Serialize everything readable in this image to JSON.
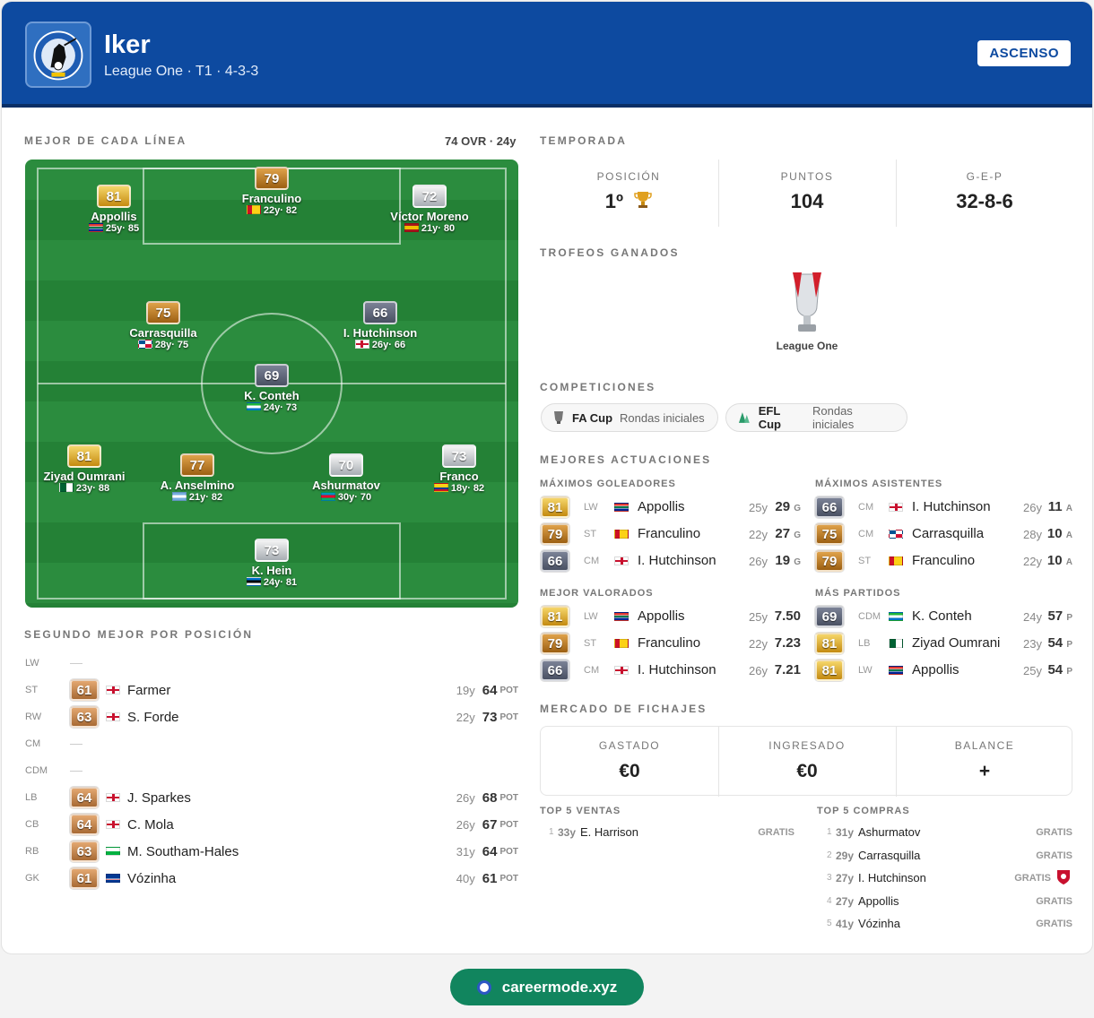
{
  "header": {
    "club_name": "Iker",
    "subtitle": "League One · T1 · 4-3-3",
    "badge": "ASCENSO"
  },
  "best_line": {
    "title": "MEJOR DE CADA LÍNEA",
    "summary": "74 OVR · 24y",
    "players": [
      {
        "rating": "81",
        "name": "Appollis",
        "meta": "25y· 85",
        "tier": "gold",
        "flag": "rsa"
      },
      {
        "rating": "79",
        "name": "Franculino",
        "meta": "22y· 82",
        "tier": "bronze",
        "flag": "gnb"
      },
      {
        "rating": "72",
        "name": "Víctor Moreno",
        "meta": "21y· 80",
        "tier": "silver",
        "flag": "esp"
      },
      {
        "rating": "75",
        "name": "Carrasquilla",
        "meta": "28y· 75",
        "tier": "bronze",
        "flag": "pan"
      },
      {
        "rating": "66",
        "name": "I. Hutchinson",
        "meta": "26y· 66",
        "tier": "dark",
        "flag": "gbr"
      },
      {
        "rating": "69",
        "name": "K. Conteh",
        "meta": "24y· 73",
        "tier": "dark",
        "flag": "sle"
      },
      {
        "rating": "81",
        "name": "Ziyad Oumrani",
        "meta": "23y· 88",
        "tier": "gold",
        "flag": "alg"
      },
      {
        "rating": "77",
        "name": "A. Anselmino",
        "meta": "21y· 82",
        "tier": "bronze",
        "flag": "arg"
      },
      {
        "rating": "70",
        "name": "Ashurmatov",
        "meta": "30y· 70",
        "tier": "silver",
        "flag": "aze"
      },
      {
        "rating": "73",
        "name": "Franco",
        "meta": "18y· 82",
        "tier": "silver",
        "flag": "col"
      },
      {
        "rating": "73",
        "name": "K. Hein",
        "meta": "24y· 81",
        "tier": "silver",
        "flag": "est"
      }
    ]
  },
  "second_best": {
    "title": "SEGUNDO MEJOR POR POSICIÓN",
    "rows": [
      {
        "pos": "LW",
        "empty": true
      },
      {
        "pos": "ST",
        "rating": "61",
        "name": "Farmer",
        "age": "19y",
        "pot": "64",
        "flag": "gbr"
      },
      {
        "pos": "RW",
        "rating": "63",
        "name": "S. Forde",
        "age": "22y",
        "pot": "73",
        "flag": "gbr"
      },
      {
        "pos": "CM",
        "empty": true
      },
      {
        "pos": "CDM",
        "empty": true
      },
      {
        "pos": "LB",
        "rating": "64",
        "name": "J. Sparkes",
        "age": "26y",
        "pot": "68",
        "flag": "gbr"
      },
      {
        "pos": "CB",
        "rating": "64",
        "name": "C. Mola",
        "age": "26y",
        "pot": "67",
        "flag": "gbr"
      },
      {
        "pos": "RB",
        "rating": "63",
        "name": "M. Southam-Hales",
        "age": "31y",
        "pot": "64",
        "flag": "wal"
      },
      {
        "pos": "GK",
        "rating": "61",
        "name": "Vózinha",
        "age": "40y",
        "pot": "61",
        "flag": "cpv"
      }
    ],
    "pot_label": "POT"
  },
  "season": {
    "title": "TEMPORADA",
    "position_label": "POSICIÓN",
    "position_value": "1º",
    "points_label": "PUNTOS",
    "points_value": "104",
    "record_label": "G-E-P",
    "record_value": "32-8-6"
  },
  "trophies": {
    "title": "TROFEOS GANADOS",
    "items": [
      "League One"
    ]
  },
  "competitions": {
    "title": "COMPETICIONES",
    "items": [
      {
        "name": "FA Cup",
        "status": "Rondas iniciales"
      },
      {
        "name": "EFL Cup",
        "status": "Rondas iniciales"
      }
    ]
  },
  "performances": {
    "title": "MEJORES ACTUACIONES",
    "scorers": {
      "title": "MÁXIMOS GOLEADORES",
      "unit": "G",
      "rows": [
        {
          "rating": "81",
          "tier": "gold",
          "pos": "LW",
          "flag": "rsa",
          "name": "Appollis",
          "age": "25y",
          "val": "29"
        },
        {
          "rating": "79",
          "tier": "bronze",
          "pos": "ST",
          "flag": "gnb",
          "name": "Franculino",
          "age": "22y",
          "val": "27"
        },
        {
          "rating": "66",
          "tier": "dark",
          "pos": "CM",
          "flag": "gbr",
          "name": "I. Hutchinson",
          "age": "26y",
          "val": "19"
        }
      ]
    },
    "assists": {
      "title": "MÁXIMOS ASISTENTES",
      "unit": "A",
      "rows": [
        {
          "rating": "66",
          "tier": "dark",
          "pos": "CM",
          "flag": "gbr",
          "name": "I. Hutchinson",
          "age": "26y",
          "val": "11"
        },
        {
          "rating": "75",
          "tier": "bronze",
          "pos": "CM",
          "flag": "pan",
          "name": "Carrasquilla",
          "age": "28y",
          "val": "10"
        },
        {
          "rating": "79",
          "tier": "bronze",
          "pos": "ST",
          "flag": "gnb",
          "name": "Franculino",
          "age": "22y",
          "val": "10"
        }
      ]
    },
    "rated": {
      "title": "MEJOR VALORADOS",
      "unit": "",
      "rows": [
        {
          "rating": "81",
          "tier": "gold",
          "pos": "LW",
          "flag": "rsa",
          "name": "Appollis",
          "age": "25y",
          "val": "7.50"
        },
        {
          "rating": "79",
          "tier": "bronze",
          "pos": "ST",
          "flag": "gnb",
          "name": "Franculino",
          "age": "22y",
          "val": "7.23"
        },
        {
          "rating": "66",
          "tier": "dark",
          "pos": "CM",
          "flag": "gbr",
          "name": "I. Hutchinson",
          "age": "26y",
          "val": "7.21"
        }
      ]
    },
    "apps": {
      "title": "MÁS PARTIDOS",
      "unit": "P",
      "rows": [
        {
          "rating": "69",
          "tier": "dark",
          "pos": "CDM",
          "flag": "sle",
          "name": "K. Conteh",
          "age": "24y",
          "val": "57"
        },
        {
          "rating": "81",
          "tier": "gold",
          "pos": "LB",
          "flag": "alg",
          "name": "Ziyad Oumrani",
          "age": "23y",
          "val": "54"
        },
        {
          "rating": "81",
          "tier": "gold",
          "pos": "LW",
          "flag": "rsa",
          "name": "Appollis",
          "age": "25y",
          "val": "54"
        }
      ]
    }
  },
  "market": {
    "title": "MERCADO DE FICHAJES",
    "spent_label": "GASTADO",
    "spent_value": "€0",
    "income_label": "INGRESADO",
    "income_value": "€0",
    "balance_label": "BALANCE",
    "balance_value": "+",
    "sales_title": "TOP 5 VENTAS",
    "sales": [
      {
        "n": "1",
        "age": "33y",
        "name": "E. Harrison",
        "fee": "GRATIS"
      }
    ],
    "buys_title": "TOP 5 COMPRAS",
    "buys": [
      {
        "n": "1",
        "age": "31y",
        "name": "Ashurmatov",
        "fee": "GRATIS"
      },
      {
        "n": "2",
        "age": "29y",
        "name": "Carrasquilla",
        "fee": "GRATIS"
      },
      {
        "n": "3",
        "age": "27y",
        "name": "I. Hutchinson",
        "fee": "GRATIS"
      },
      {
        "n": "4",
        "age": "27y",
        "name": "Appollis",
        "fee": "GRATIS"
      },
      {
        "n": "5",
        "age": "41y",
        "name": "Vózinha",
        "fee": "GRATIS"
      }
    ]
  },
  "footer": {
    "link": "careermode.xyz"
  }
}
